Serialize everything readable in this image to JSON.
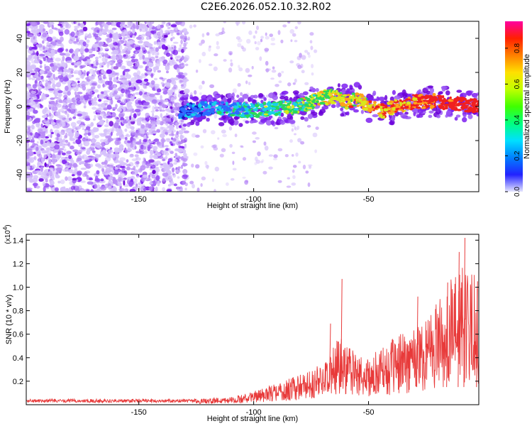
{
  "title": "C2E6.2026.052.10.32.R02",
  "colors": {
    "line": "#e83a3a",
    "scatter": [
      "#6a00d8",
      "#7d1ef0",
      "#9b59f5",
      "#b98cf7",
      "#d6c2fb"
    ],
    "trace": [
      "#1a14c8",
      "#2a6cff",
      "#19d0e8",
      "#2ad85a",
      "#d8e81c",
      "#ffa21a",
      "#f02020"
    ],
    "colorbar": [
      "#e6e6ff",
      "#2222ff",
      "#0080ff",
      "#00e0ff",
      "#00ff80",
      "#40ff00",
      "#c0ff00",
      "#ffe000",
      "#ff8000",
      "#ff2000",
      "#ff00a0"
    ]
  },
  "chart_data": [
    {
      "type": "heatmap",
      "xlabel": "Height of straight line (km)",
      "ylabel": "Frequency (Hz)",
      "xlim": [
        -199,
        -2
      ],
      "ylim": [
        -50,
        50
      ],
      "xticks": [
        -150,
        -100,
        -50
      ],
      "yticks": [
        -40,
        -20,
        0,
        20,
        40
      ],
      "noise_region_x": [
        -199,
        -132
      ],
      "trace": {
        "x": [
          -132,
          -120,
          -110,
          -100,
          -90,
          -80,
          -70,
          -65,
          -60,
          -55,
          -50,
          -45,
          -40,
          -30,
          -20,
          -10,
          -2
        ],
        "y": [
          -3,
          -1,
          -2,
          -2,
          -1,
          0,
          5,
          6,
          3,
          4,
          1,
          -3,
          -1,
          3,
          3,
          1,
          0
        ]
      },
      "colorbar": {
        "label": "Normalized spectral amplitude",
        "ticks": [
          0.0,
          0.2,
          0.4,
          0.6,
          0.8
        ],
        "range": [
          0,
          0.95
        ]
      }
    },
    {
      "type": "line",
      "xlabel": "Height of straight line (km)",
      "ylabel": "SNR (10 * v/v)",
      "multiplier_label": "(x10",
      "multiplier_exp": "4",
      "xlim": [
        -199,
        -2
      ],
      "ylim": [
        0,
        1.45
      ],
      "xticks": [
        -150,
        -100,
        -50
      ],
      "yticks": [
        0.2,
        0.4,
        0.6,
        0.8,
        1.0,
        1.2,
        1.4
      ],
      "envelope": {
        "x": [
          -199,
          -125,
          -122,
          -110,
          -103,
          -100,
          -90,
          -80,
          -70,
          -65,
          -62,
          -55,
          -50,
          -45,
          -40,
          -35,
          -30,
          -25,
          -20,
          -15,
          -10,
          -5,
          -2
        ],
        "y": [
          0.035,
          0.035,
          0.05,
          0.07,
          0.09,
          0.12,
          0.18,
          0.26,
          0.36,
          0.5,
          0.62,
          0.42,
          0.4,
          0.48,
          0.55,
          0.62,
          0.7,
          0.78,
          0.92,
          1.05,
          1.15,
          1.25,
          1.0
        ]
      },
      "peaks": [
        {
          "x": -62,
          "y": 1.07
        },
        {
          "x": -67,
          "y": 0.69
        },
        {
          "x": -29,
          "y": 0.92
        },
        {
          "x": -16,
          "y": 1.04
        },
        {
          "x": -11,
          "y": 1.3
        },
        {
          "x": -8.5,
          "y": 1.42
        },
        {
          "x": -3,
          "y": 1.05
        },
        {
          "x": -2,
          "y": 0.96
        }
      ]
    }
  ]
}
